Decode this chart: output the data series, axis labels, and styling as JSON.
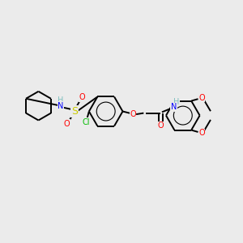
{
  "background_color": "#ebebeb",
  "bond_color": "#000000",
  "bond_width": 1.4,
  "atom_colors": {
    "C": "#000000",
    "H": "#7fbfbf",
    "N": "#0000ff",
    "O": "#ff0000",
    "S": "#cccc00",
    "Cl": "#00bb00"
  },
  "font_size": 7,
  "figsize": [
    3.0,
    3.0
  ],
  "dpi": 100
}
